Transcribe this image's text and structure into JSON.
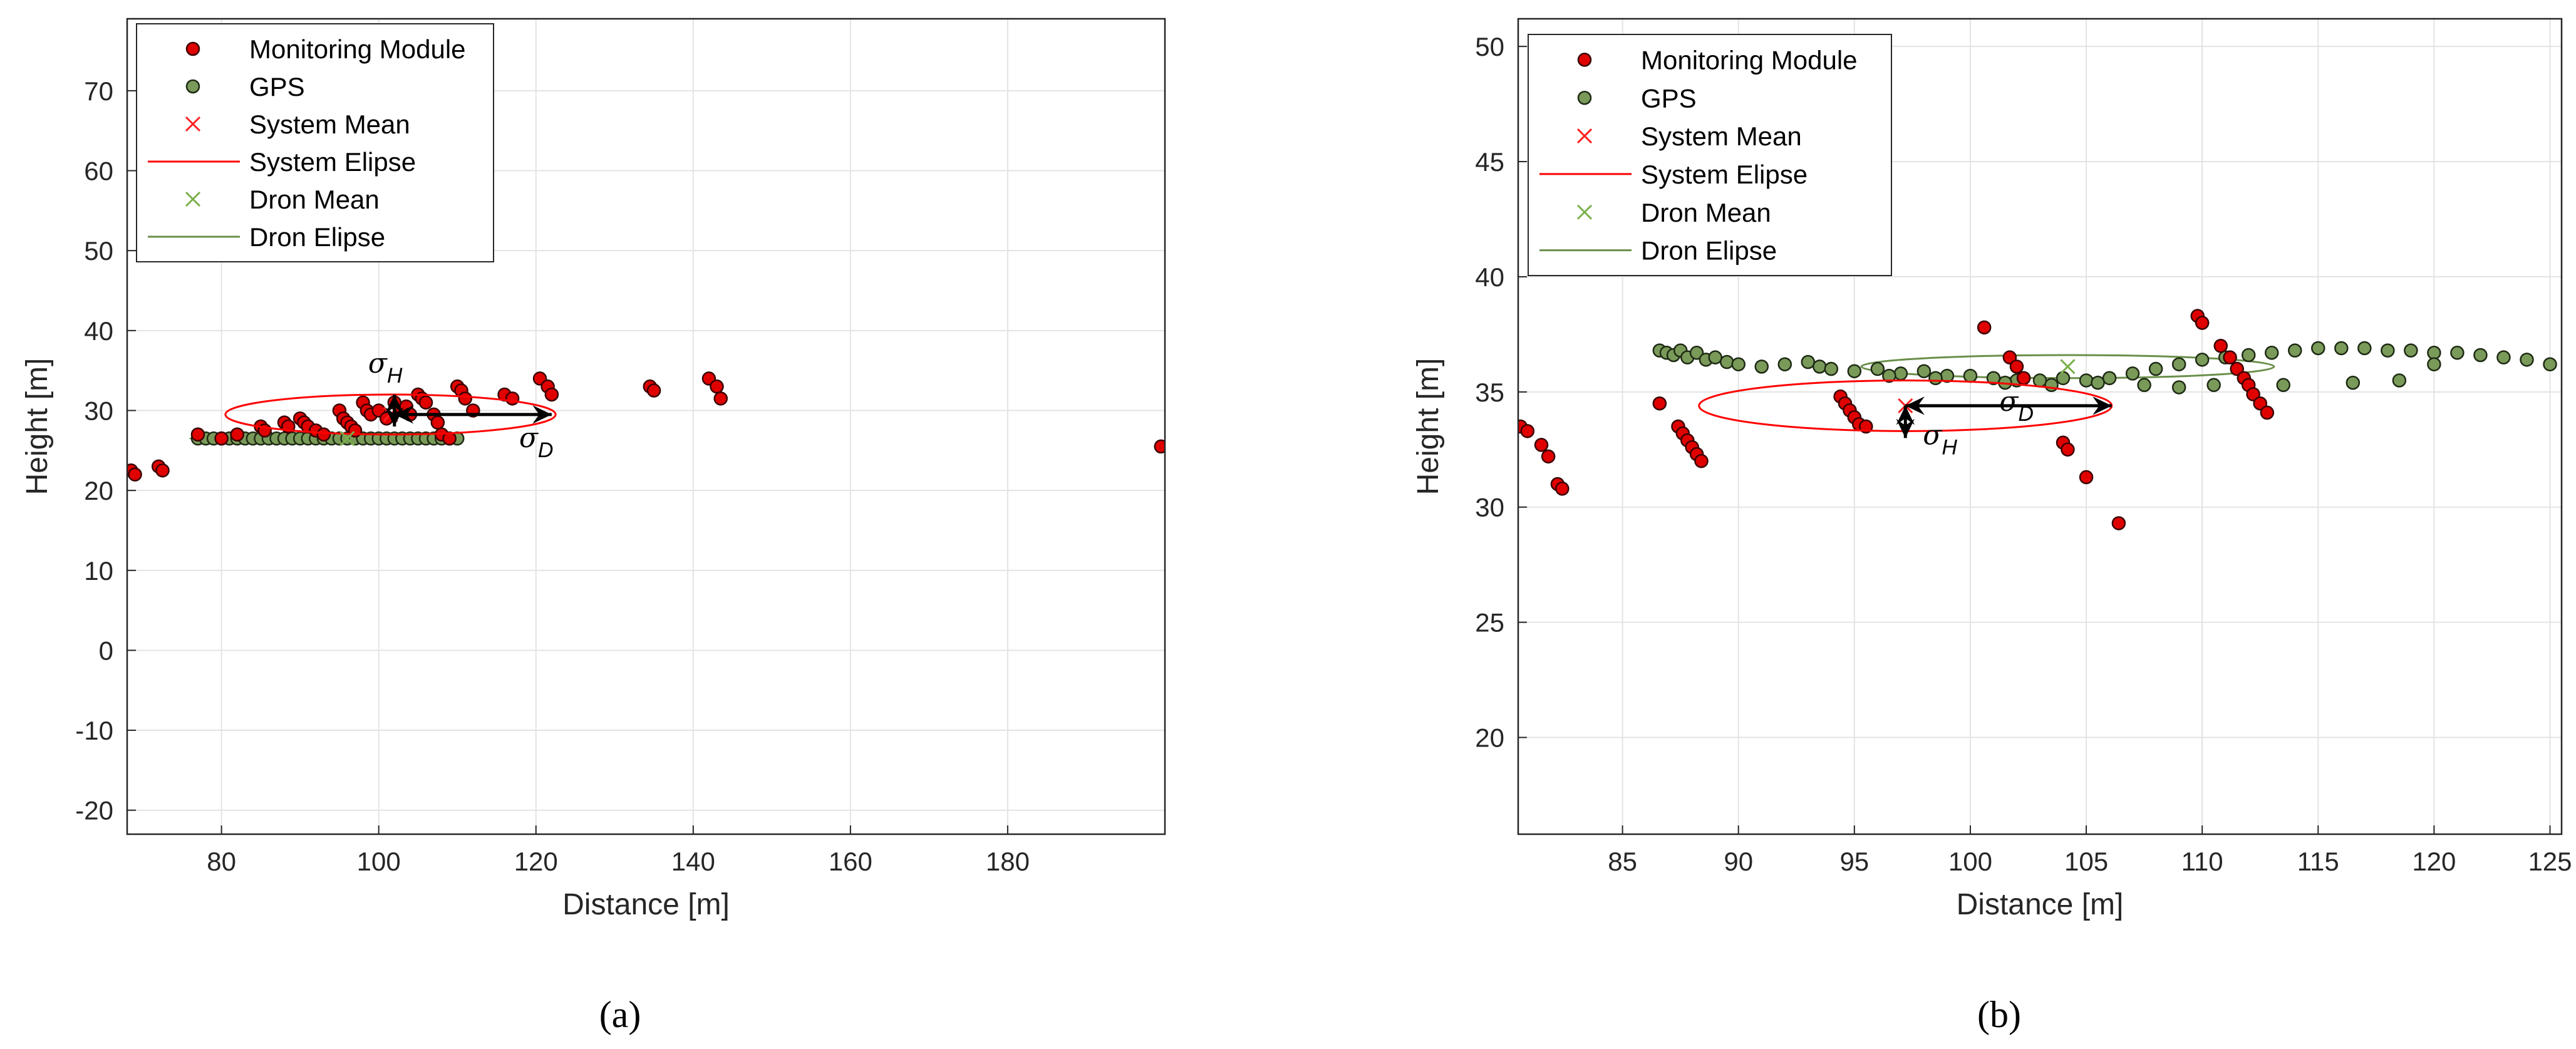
{
  "chart_data": [
    {
      "type": "scatter",
      "panel_label": "(a)",
      "xlabel": "Distance [m]",
      "ylabel": "Height [m]",
      "xlim": [
        68,
        200
      ],
      "ylim": [
        -23,
        79
      ],
      "xticks": [
        80,
        100,
        120,
        140,
        160,
        180
      ],
      "yticks": [
        -20,
        -10,
        0,
        10,
        20,
        30,
        40,
        50,
        60,
        70
      ],
      "grid": true,
      "legend_position": "top-left",
      "legend": [
        "Monitoring Module",
        "GPS",
        "System Mean",
        "System Elipse",
        "Dron Mean",
        "Dron Elipse"
      ],
      "annotations": [
        {
          "symbol": "σ",
          "sub": "H"
        },
        {
          "symbol": "σ",
          "sub": "D"
        }
      ],
      "series": [
        {
          "name": "Monitoring Module",
          "color": "#e00000",
          "x": [
            68.5,
            69,
            72,
            72.5,
            77,
            80,
            82,
            85,
            85.5,
            88,
            88.5,
            90,
            90.5,
            91,
            92,
            93,
            95,
            95.5,
            96,
            96.5,
            97,
            98,
            98.5,
            99,
            100,
            101,
            102,
            103,
            103.5,
            104,
            105,
            105.5,
            106,
            107,
            107.5,
            108,
            109,
            110,
            110.5,
            111,
            112,
            116,
            117,
            120.5,
            121.5,
            122,
            134.5,
            135,
            142,
            143,
            143.5,
            199.5
          ],
          "y": [
            22.5,
            22,
            23,
            22.5,
            27,
            26.5,
            27,
            28,
            27.5,
            28.5,
            28,
            29,
            28.5,
            28,
            27.5,
            27,
            30,
            29,
            28.5,
            28,
            27.5,
            31,
            30,
            29.5,
            30,
            29,
            31,
            30,
            30.5,
            29.5,
            32,
            31.5,
            31,
            29.5,
            28.5,
            27,
            26.5,
            33,
            32.5,
            31.5,
            30,
            32,
            31.5,
            34,
            33,
            32,
            33,
            32.5,
            34,
            33,
            31.5,
            25.5
          ]
        },
        {
          "name": "GPS",
          "color": "#7a9a5a",
          "x": [
            77,
            78,
            79,
            80,
            81,
            82,
            83,
            84,
            85,
            86,
            87,
            88,
            89,
            90,
            91,
            92,
            93,
            94,
            95,
            96,
            97,
            98,
            99,
            100,
            101,
            102,
            103,
            104,
            105,
            106,
            107,
            108,
            109,
            110
          ],
          "y": [
            26.5,
            26.5,
            26.5,
            26.5,
            26.5,
            26.5,
            26.5,
            26.5,
            26.5,
            26.5,
            26.5,
            26.5,
            26.5,
            26.5,
            26.5,
            26.5,
            26.5,
            26.5,
            26.5,
            26.5,
            26.5,
            26.5,
            26.5,
            26.5,
            26.5,
            26.5,
            26.5,
            26.5,
            26.5,
            26.5,
            26.5,
            26.5,
            26.5,
            26.5
          ]
        },
        {
          "name": "System Mean",
          "color": "#ff2020",
          "x": [
            101.5
          ],
          "y": [
            29.5
          ]
        },
        {
          "name": "System Elipse",
          "color": "#ff0000",
          "cx": 101.5,
          "cy": 29.5,
          "rx": 21,
          "ry": 2.5
        },
        {
          "name": "Dron Mean",
          "color": "#7ab04a",
          "x": [
            96
          ],
          "y": [
            26.5
          ]
        },
        {
          "name": "Dron Elipse",
          "color": "#6a8f4a",
          "cx": 93,
          "cy": 26.5,
          "rx": 17,
          "ry": 0.3
        }
      ],
      "arrows": [
        {
          "symbol": "σ",
          "sub": "H",
          "x": 102,
          "y1": 28,
          "y2": 32
        },
        {
          "symbol": "σ",
          "sub": "D",
          "y": 29.5,
          "x1": 102,
          "x2": 122
        }
      ]
    },
    {
      "type": "scatter",
      "panel_label": "(b)",
      "xlabel": "Distance [m]",
      "ylabel": "Height [m]",
      "xlim": [
        80.5,
        125.5
      ],
      "ylim": [
        15.8,
        51.2
      ],
      "xticks": [
        85,
        90,
        95,
        100,
        105,
        110,
        115,
        120,
        125
      ],
      "yticks": [
        20,
        25,
        30,
        35,
        40,
        45,
        50
      ],
      "grid": true,
      "legend_position": "top-left",
      "legend": [
        "Monitoring Module",
        "GPS",
        "System Mean",
        "System Elipse",
        "Dron Mean",
        "Dron Elipse"
      ],
      "annotations": [
        {
          "symbol": "σ",
          "sub": "H"
        },
        {
          "symbol": "σ",
          "sub": "D"
        }
      ],
      "series": [
        {
          "name": "Monitoring Module",
          "color": "#e00000",
          "x": [
            80.6,
            80.9,
            81.5,
            81.8,
            82.2,
            82.4,
            86.6,
            87.4,
            87.6,
            87.8,
            88,
            88.2,
            88.4,
            94.4,
            94.6,
            94.8,
            95,
            95.2,
            95.5,
            100.6,
            101.7,
            102,
            102.3,
            104,
            104.2,
            105,
            106.4,
            109.8,
            110,
            110.8,
            111.2,
            111.5,
            111.8,
            112,
            112.2,
            112.5,
            112.8
          ],
          "y": [
            33.5,
            33.3,
            32.7,
            32.2,
            31,
            30.8,
            34.5,
            33.5,
            33.2,
            32.9,
            32.6,
            32.3,
            32,
            34.8,
            34.5,
            34.2,
            33.9,
            33.6,
            33.5,
            37.8,
            36.5,
            36.1,
            35.6,
            32.8,
            32.5,
            31.3,
            29.3,
            38.3,
            38,
            37,
            36.5,
            36,
            35.6,
            35.3,
            34.9,
            34.5,
            34.1
          ]
        },
        {
          "name": "GPS",
          "color": "#7a9a5a",
          "x": [
            86.6,
            86.9,
            87.2,
            87.5,
            87.8,
            88.2,
            88.6,
            89,
            89.5,
            90,
            91,
            92,
            93,
            93.5,
            94,
            95,
            96,
            97,
            98,
            99,
            100,
            101,
            102,
            103,
            104,
            105,
            106,
            107,
            108,
            109,
            110,
            111,
            112,
            113,
            114,
            115,
            116,
            117,
            118,
            119,
            120,
            121,
            122,
            123,
            124,
            125,
            96.5,
            98.5,
            101.5,
            103.5,
            105.5,
            107.5,
            109,
            110.5,
            113.5,
            116.5,
            118.5,
            120
          ],
          "y": [
            36.8,
            36.7,
            36.6,
            36.8,
            36.5,
            36.7,
            36.4,
            36.5,
            36.3,
            36.2,
            36.1,
            36.2,
            36.3,
            36.1,
            36,
            35.9,
            36,
            35.8,
            35.9,
            35.7,
            35.7,
            35.6,
            35.5,
            35.5,
            35.6,
            35.5,
            35.6,
            35.8,
            36,
            36.2,
            36.4,
            36.5,
            36.6,
            36.7,
            36.8,
            36.9,
            36.9,
            36.9,
            36.8,
            36.8,
            36.7,
            36.7,
            36.6,
            36.5,
            36.4,
            36.2,
            35.7,
            35.6,
            35.4,
            35.3,
            35.4,
            35.3,
            35.2,
            35.3,
            35.3,
            35.4,
            35.5,
            36.2
          ]
        },
        {
          "name": "System Mean",
          "color": "#ff2020",
          "x": [
            97.2
          ],
          "y": [
            34.4
          ]
        },
        {
          "name": "System Elipse",
          "color": "#ff0000",
          "cx": 97.2,
          "cy": 34.4,
          "rx": 8.9,
          "ry": 1.1
        },
        {
          "name": "Dron Mean",
          "color": "#7ab04a",
          "x": [
            104.2
          ],
          "y": [
            36.1
          ]
        },
        {
          "name": "Dron Elipse",
          "color": "#6a8f4a",
          "cx": 104.2,
          "cy": 36.1,
          "rx": 8.9,
          "ry": 0.5
        }
      ],
      "arrows": [
        {
          "symbol": "σ",
          "sub": "H",
          "x": 97.2,
          "y1": 33,
          "y2": 34.4
        },
        {
          "symbol": "σ",
          "sub": "D",
          "y": 34.4,
          "x1": 97.2,
          "x2": 106.1
        }
      ]
    }
  ]
}
